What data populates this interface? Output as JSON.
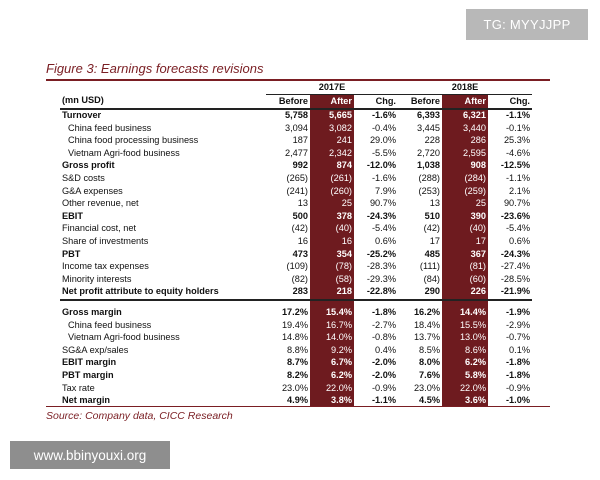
{
  "watermarks": {
    "top": "TG: MYYJJPP",
    "bottom": "www.bbinyouxi.org"
  },
  "figure": {
    "title": "Figure 3: Earnings forecasts revisions",
    "source": "Source: Company data, CICC Research"
  },
  "table": {
    "years": [
      "2017E",
      "2018E"
    ],
    "unit_label": "(mn USD)",
    "columns": [
      "Before",
      "After",
      "Chg.",
      "Before",
      "After",
      "Chg."
    ],
    "section1": [
      {
        "label": "Turnover",
        "bold": true,
        "indent": false,
        "v": [
          "5,758",
          "5,665",
          "-1.6%",
          "6,393",
          "6,321",
          "-1.1%"
        ]
      },
      {
        "label": "China feed business",
        "bold": false,
        "indent": true,
        "v": [
          "3,094",
          "3,082",
          "-0.4%",
          "3,445",
          "3,440",
          "-0.1%"
        ]
      },
      {
        "label": "China food processing business",
        "bold": false,
        "indent": true,
        "v": [
          "187",
          "241",
          "29.0%",
          "228",
          "286",
          "25.3%"
        ]
      },
      {
        "label": "Vietnam Agri-food business",
        "bold": false,
        "indent": true,
        "v": [
          "2,477",
          "2,342",
          "-5.5%",
          "2,720",
          "2,595",
          "-4.6%"
        ]
      },
      {
        "label": "Gross profit",
        "bold": true,
        "indent": false,
        "v": [
          "992",
          "874",
          "-12.0%",
          "1,038",
          "908",
          "-12.5%"
        ]
      },
      {
        "label": "S&D costs",
        "bold": false,
        "indent": false,
        "v": [
          "(265)",
          "(261)",
          "-1.6%",
          "(288)",
          "(284)",
          "-1.1%"
        ]
      },
      {
        "label": "G&A expenses",
        "bold": false,
        "indent": false,
        "v": [
          "(241)",
          "(260)",
          "7.9%",
          "(253)",
          "(259)",
          "2.1%"
        ]
      },
      {
        "label": "Other revenue, net",
        "bold": false,
        "indent": false,
        "v": [
          "13",
          "25",
          "90.7%",
          "13",
          "25",
          "90.7%"
        ]
      },
      {
        "label": "EBIT",
        "bold": true,
        "indent": false,
        "v": [
          "500",
          "378",
          "-24.3%",
          "510",
          "390",
          "-23.6%"
        ]
      },
      {
        "label": "Financial cost, net",
        "bold": false,
        "indent": false,
        "v": [
          "(42)",
          "(40)",
          "-5.4%",
          "(42)",
          "(40)",
          "-5.4%"
        ]
      },
      {
        "label": "Share of investments",
        "bold": false,
        "indent": false,
        "v": [
          "16",
          "16",
          "0.6%",
          "17",
          "17",
          "0.6%"
        ]
      },
      {
        "label": "PBT",
        "bold": true,
        "indent": false,
        "v": [
          "473",
          "354",
          "-25.2%",
          "485",
          "367",
          "-24.3%"
        ]
      },
      {
        "label": "Income tax expenses",
        "bold": false,
        "indent": false,
        "v": [
          "(109)",
          "(78)",
          "-28.3%",
          "(111)",
          "(81)",
          "-27.4%"
        ]
      },
      {
        "label": "Minority interests",
        "bold": false,
        "indent": false,
        "v": [
          "(82)",
          "(58)",
          "-29.3%",
          "(84)",
          "(60)",
          "-28.5%"
        ]
      },
      {
        "label": "Net profit attribute to equity holders",
        "bold": true,
        "indent": false,
        "v": [
          "283",
          "218",
          "-22.8%",
          "290",
          "226",
          "-21.9%"
        ]
      }
    ],
    "section2": [
      {
        "label": "Gross margin",
        "bold": true,
        "indent": false,
        "v": [
          "17.2%",
          "15.4%",
          "-1.8%",
          "16.2%",
          "14.4%",
          "-1.9%"
        ]
      },
      {
        "label": "China feed business",
        "bold": false,
        "indent": true,
        "v": [
          "19.4%",
          "16.7%",
          "-2.7%",
          "18.4%",
          "15.5%",
          "-2.9%"
        ]
      },
      {
        "label": "Vietnam Agri-food business",
        "bold": false,
        "indent": true,
        "v": [
          "14.8%",
          "14.0%",
          "-0.8%",
          "13.7%",
          "13.0%",
          "-0.7%"
        ]
      },
      {
        "label": "SG&A exp/sales",
        "bold": false,
        "indent": false,
        "v": [
          "8.8%",
          "9.2%",
          "0.4%",
          "8.5%",
          "8.6%",
          "0.1%"
        ]
      },
      {
        "label": "EBIT margin",
        "bold": true,
        "indent": false,
        "v": [
          "8.7%",
          "6.7%",
          "-2.0%",
          "8.0%",
          "6.2%",
          "-1.8%"
        ]
      },
      {
        "label": "PBT margin",
        "bold": true,
        "indent": false,
        "v": [
          "8.2%",
          "6.2%",
          "-2.0%",
          "7.6%",
          "5.8%",
          "-1.8%"
        ]
      },
      {
        "label": "Tax rate",
        "bold": false,
        "indent": false,
        "v": [
          "23.0%",
          "22.0%",
          "-0.9%",
          "23.0%",
          "22.0%",
          "-0.9%"
        ]
      },
      {
        "label": "Net margin",
        "bold": true,
        "indent": false,
        "v": [
          "4.9%",
          "3.8%",
          "-1.1%",
          "4.5%",
          "3.6%",
          "-1.0%"
        ]
      }
    ]
  },
  "colors": {
    "highlight": "#6e1b1f",
    "accent_text": "#7a1e23"
  }
}
